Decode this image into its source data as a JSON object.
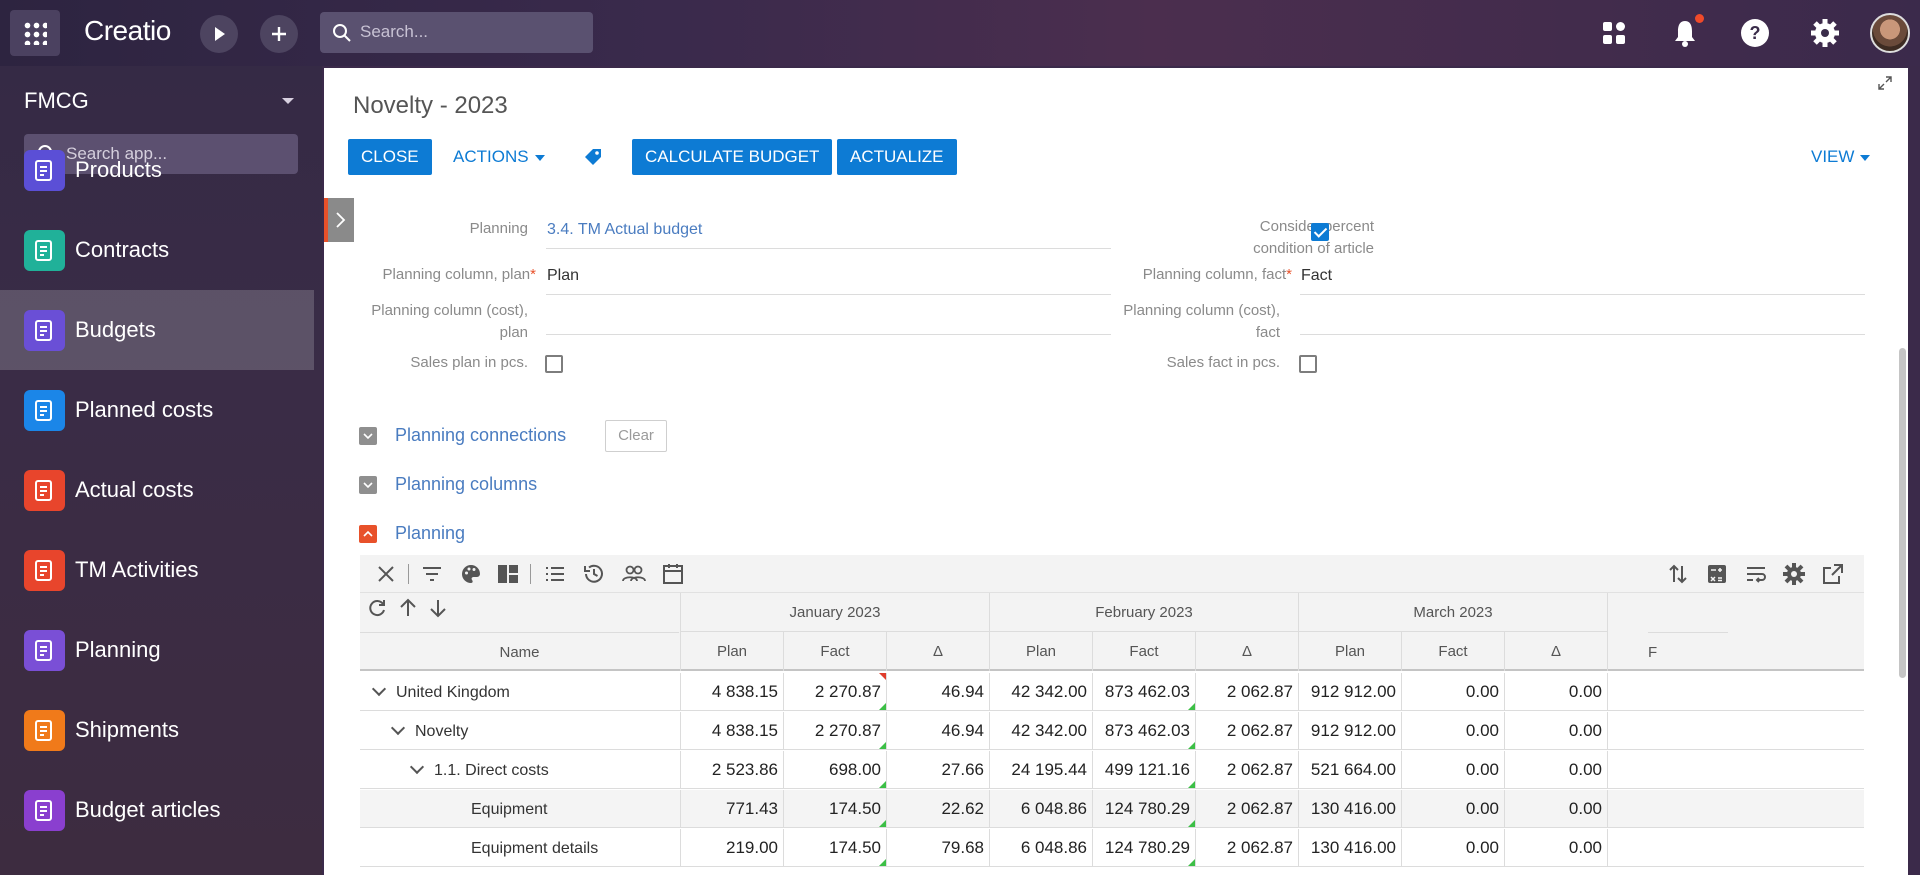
{
  "topbar": {
    "logo": "Creatio",
    "search_placeholder": "Search..."
  },
  "sidebar": {
    "workspace": "FMCG",
    "search_placeholder": "Search app...",
    "items": [
      {
        "label": "Products",
        "color": "#5b4fd6"
      },
      {
        "label": "Contracts",
        "color": "#20b199"
      },
      {
        "label": "Budgets",
        "color": "#6a4fd6",
        "active": true
      },
      {
        "label": "Planned costs",
        "color": "#1b86e8"
      },
      {
        "label": "Actual costs",
        "color": "#e8452c"
      },
      {
        "label": "TM Activities",
        "color": "#e8452c"
      },
      {
        "label": "Planning",
        "color": "#7a4fd6"
      },
      {
        "label": "Shipments",
        "color": "#f07a1a"
      },
      {
        "label": "Budget articles",
        "color": "#8a3fcf"
      }
    ]
  },
  "page": {
    "title": "Novelty - 2023",
    "close": "CLOSE",
    "actions": "ACTIONS",
    "calculate": "CALCULATE BUDGET",
    "actualize": "ACTUALIZE",
    "view": "VIEW"
  },
  "form": {
    "planning_label": "Planning",
    "planning_value": "3.4. TM Actual budget",
    "consider_label_1": "Consider percent",
    "consider_label_2": "condition of article",
    "consider_checked": true,
    "plan_col_label": "Planning column, plan",
    "plan_col_value": "Plan",
    "fact_col_label": "Planning column, fact",
    "fact_col_value": "Fact",
    "cost_plan_label_1": "Planning column (cost),",
    "cost_plan_label_2": "plan",
    "cost_fact_label_1": "Planning column (cost),",
    "cost_fact_label_2": "fact",
    "sales_plan_label": "Sales plan in pcs.",
    "sales_fact_label": "Sales fact in pcs."
  },
  "groups": {
    "connections": "Planning connections",
    "clear": "Clear",
    "columns": "Planning columns",
    "planning": "Planning"
  },
  "grid": {
    "name_header": "Name",
    "months": [
      "January 2023",
      "February 2023",
      "March 2023"
    ],
    "sub_headers": [
      "Plan",
      "Fact",
      "Δ"
    ],
    "trailing_header": "F",
    "rows": [
      {
        "name": "United Kingdom",
        "level": 0,
        "expandable": true,
        "values": [
          "4 838.15",
          "2 270.87",
          "46.94",
          "42 342.00",
          "873 462.03",
          "2 062.87",
          "912 912.00",
          "0.00",
          "0.00"
        ]
      },
      {
        "name": "Novelty",
        "level": 1,
        "expandable": true,
        "values": [
          "4 838.15",
          "2 270.87",
          "46.94",
          "42 342.00",
          "873 462.03",
          "2 062.87",
          "912 912.00",
          "0.00",
          "0.00"
        ]
      },
      {
        "name": "1.1. Direct costs",
        "level": 2,
        "expandable": true,
        "values": [
          "2 523.86",
          "698.00",
          "27.66",
          "24 195.44",
          "499 121.16",
          "2 062.87",
          "521 664.00",
          "0.00",
          "0.00"
        ]
      },
      {
        "name": "Equipment",
        "level": 3,
        "expandable": false,
        "values": [
          "771.43",
          "174.50",
          "22.62",
          "6 048.86",
          "124 780.29",
          "2 062.87",
          "130 416.00",
          "0.00",
          "0.00"
        ]
      },
      {
        "name": "Equipment details",
        "level": 3,
        "expandable": false,
        "values": [
          "219.00",
          "174.50",
          "79.68",
          "6 048.86",
          "124 780.29",
          "2 062.87",
          "130 416.00",
          "0.00",
          "0.00"
        ]
      }
    ]
  }
}
